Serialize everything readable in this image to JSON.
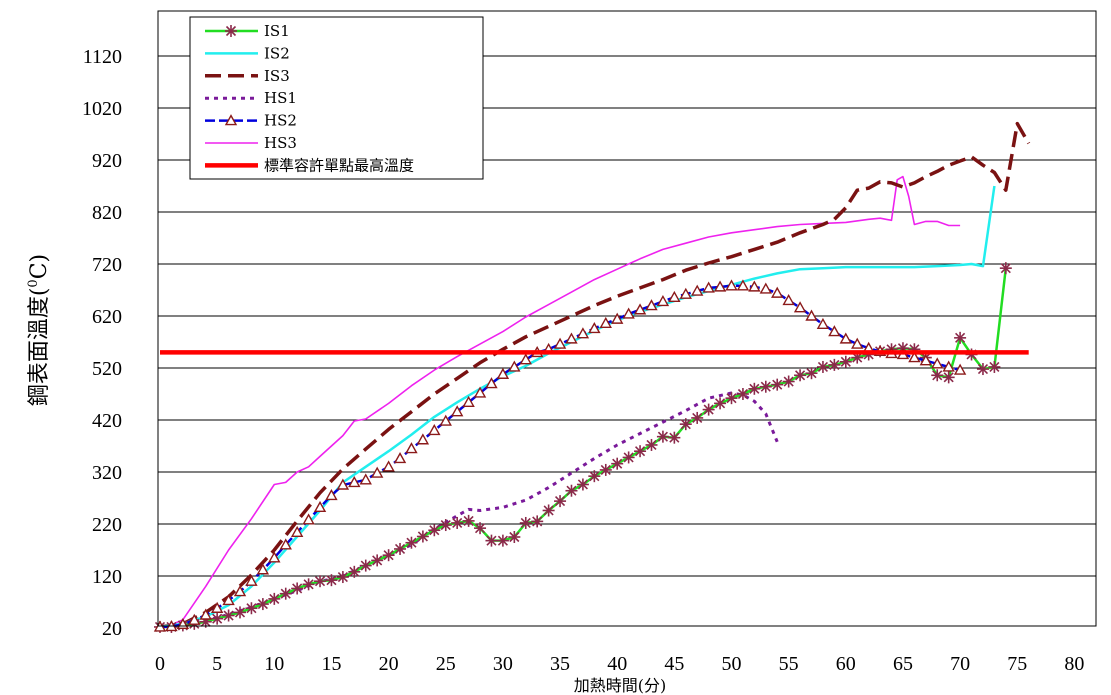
{
  "chart_data": {
    "type": "line",
    "title": "",
    "xlabel": "加熱時間(分)",
    "ylabel": "鋼表面溫度(",
    "ylabel_sup": "0",
    "ylabel_unit": "C)",
    "xlim": [
      0,
      80
    ],
    "ylim": [
      20,
      1120
    ],
    "x_ticks": [
      0,
      5,
      10,
      15,
      20,
      25,
      30,
      35,
      40,
      45,
      50,
      55,
      60,
      65,
      70,
      75,
      80
    ],
    "y_ticks": [
      20,
      120,
      220,
      320,
      420,
      520,
      620,
      720,
      820,
      920,
      1020,
      1120
    ],
    "grid": "horizontal",
    "legend_position": "top-left",
    "series": [
      {
        "name": "IS1",
        "color": "#22dd22",
        "style": "solid",
        "marker": "star",
        "x": [
          0,
          1,
          2,
          3,
          4,
          5,
          6,
          7,
          8,
          9,
          10,
          11,
          12,
          13,
          14,
          15,
          16,
          17,
          18,
          19,
          20,
          21,
          22,
          23,
          24,
          25,
          26,
          27,
          28,
          29,
          30,
          31,
          32,
          33,
          34,
          35,
          36,
          37,
          38,
          39,
          40,
          41,
          42,
          43,
          44,
          45,
          46,
          47,
          48,
          49,
          50,
          51,
          52,
          53,
          54,
          55,
          56,
          57,
          58,
          59,
          60,
          61,
          62,
          63,
          64,
          65,
          66,
          67,
          68,
          69,
          70,
          71,
          72,
          73,
          74
        ],
        "y": [
          22,
          22,
          25,
          28,
          32,
          38,
          44,
          50,
          58,
          66,
          76,
          86,
          96,
          104,
          110,
          112,
          118,
          128,
          140,
          150,
          160,
          172,
          184,
          196,
          208,
          218,
          222,
          226,
          212,
          188,
          188,
          195,
          222,
          225,
          246,
          264,
          284,
          296,
          312,
          324,
          336,
          348,
          360,
          372,
          388,
          386,
          412,
          424,
          440,
          452,
          462,
          470,
          480,
          484,
          488,
          494,
          506,
          510,
          522,
          526,
          532,
          540,
          546,
          552,
          556,
          558,
          556,
          540,
          506,
          502,
          578,
          546,
          518,
          522,
          712
        ]
      },
      {
        "name": "IS2",
        "color": "#22eeee",
        "style": "solid",
        "x": [
          0,
          2,
          4,
          6,
          8,
          10,
          12,
          14,
          16,
          18,
          20,
          22,
          24,
          26,
          28,
          30,
          32,
          34,
          36,
          38,
          40,
          42,
          44,
          46,
          48,
          50,
          52,
          54,
          56,
          58,
          60,
          62,
          64,
          66,
          68,
          70,
          71,
          72,
          73
        ],
        "y": [
          22,
          28,
          42,
          64,
          100,
          146,
          196,
          246,
          300,
          330,
          360,
          392,
          426,
          454,
          480,
          504,
          524,
          548,
          570,
          592,
          612,
          628,
          642,
          656,
          668,
          680,
          692,
          702,
          710,
          712,
          714,
          714,
          714,
          714,
          716,
          718,
          720,
          716,
          870
        ]
      },
      {
        "name": "IS3",
        "color": "#7a1212",
        "style": "dashed",
        "x": [
          0,
          2,
          4,
          6,
          8,
          10,
          12,
          14,
          16,
          18,
          20,
          22,
          24,
          26,
          28,
          30,
          32,
          34,
          36,
          38,
          40,
          42,
          44,
          46,
          48,
          50,
          52,
          54,
          56,
          58,
          59,
          60,
          61,
          62,
          63,
          64,
          65,
          66,
          67,
          68,
          69,
          70,
          71,
          72,
          73,
          74,
          75,
          76
        ],
        "y": [
          22,
          28,
          50,
          80,
          122,
          170,
          226,
          280,
          326,
          364,
          402,
          436,
          470,
          500,
          530,
          556,
          580,
          600,
          620,
          640,
          658,
          674,
          690,
          708,
          722,
          734,
          748,
          762,
          780,
          796,
          806,
          828,
          862,
          866,
          878,
          876,
          868,
          876,
          888,
          898,
          910,
          918,
          926,
          910,
          896,
          862,
          990,
          952
        ]
      },
      {
        "name": "HS1",
        "color": "#7a1a9a",
        "style": "dotted",
        "x": [
          0,
          2,
          4,
          6,
          8,
          10,
          12,
          14,
          15,
          16,
          17,
          18,
          20,
          22,
          24,
          26,
          27,
          28,
          30,
          32,
          34,
          36,
          38,
          40,
          42,
          44,
          46,
          48,
          50,
          51,
          52,
          53,
          54
        ],
        "y": [
          22,
          26,
          34,
          46,
          60,
          76,
          92,
          110,
          114,
          120,
          130,
          140,
          160,
          180,
          210,
          236,
          248,
          246,
          252,
          266,
          290,
          318,
          346,
          372,
          394,
          416,
          438,
          462,
          472,
          468,
          456,
          432,
          378
        ]
      },
      {
        "name": "HS2",
        "color": "#0000dd",
        "style": "dashed",
        "marker": "triangle",
        "x": [
          0,
          1,
          2,
          3,
          4,
          5,
          6,
          7,
          8,
          9,
          10,
          11,
          12,
          13,
          14,
          15,
          16,
          17,
          18,
          19,
          20,
          21,
          22,
          23,
          24,
          25,
          26,
          27,
          28,
          29,
          30,
          31,
          32,
          33,
          34,
          35,
          36,
          37,
          38,
          39,
          40,
          41,
          42,
          43,
          44,
          45,
          46,
          47,
          48,
          49,
          50,
          51,
          52,
          53,
          54,
          55,
          56,
          57,
          58,
          59,
          60,
          61,
          62,
          63,
          64,
          65,
          66,
          67,
          68,
          69,
          70
        ],
        "y": [
          22,
          23,
          27,
          35,
          45,
          58,
          73,
          90,
          110,
          132,
          155,
          180,
          204,
          228,
          252,
          275,
          295,
          300,
          305,
          318,
          330,
          346,
          365,
          382,
          400,
          418,
          436,
          454,
          472,
          490,
          508,
          522,
          536,
          550,
          556,
          566,
          576,
          586,
          596,
          606,
          614,
          624,
          632,
          640,
          648,
          656,
          662,
          668,
          674,
          676,
          678,
          678,
          676,
          672,
          664,
          650,
          636,
          620,
          604,
          590,
          576,
          566,
          558,
          552,
          548,
          546,
          540,
          534,
          528,
          522,
          516
        ]
      },
      {
        "name": "HS3",
        "color": "#ee22ee",
        "style": "solid",
        "x": [
          0,
          1,
          2,
          4,
          6,
          8,
          10,
          11,
          12,
          13,
          14,
          16,
          17,
          18,
          20,
          22,
          24,
          26,
          28,
          30,
          32,
          34,
          36,
          38,
          40,
          42,
          44,
          46,
          48,
          50,
          52,
          54,
          56,
          58,
          60,
          62,
          63,
          64,
          64.5,
          65,
          65.5,
          66,
          67,
          68,
          69,
          70
        ],
        "y": [
          22,
          26,
          36,
          100,
          170,
          230,
          296,
          300,
          320,
          330,
          350,
          390,
          418,
          422,
          452,
          486,
          516,
          542,
          566,
          590,
          618,
          642,
          666,
          690,
          710,
          730,
          748,
          760,
          772,
          780,
          786,
          792,
          796,
          798,
          800,
          806,
          808,
          804,
          882,
          888,
          850,
          796,
          802,
          802,
          794,
          794
        ]
      },
      {
        "name": "標準容許單點最高溫度",
        "color": "#ff0000",
        "style": "solid-thick",
        "x": [
          0,
          76
        ],
        "y": [
          550,
          550
        ]
      }
    ]
  }
}
